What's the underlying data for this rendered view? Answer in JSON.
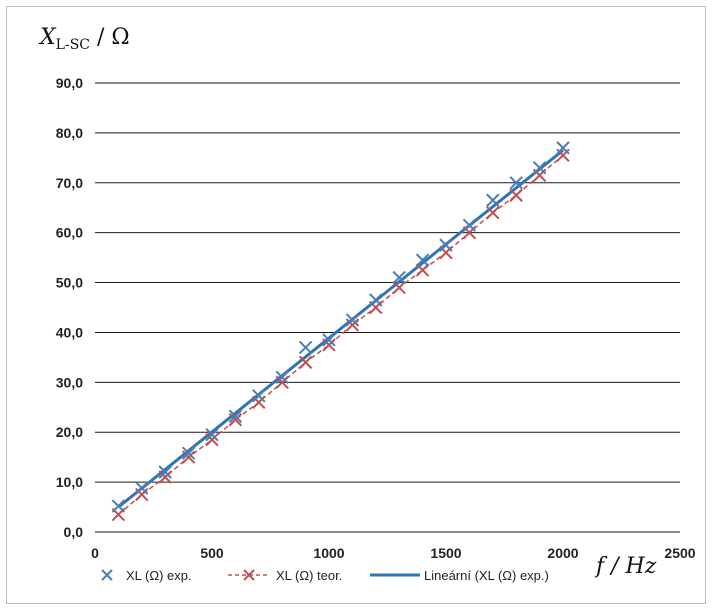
{
  "chart_data": {
    "type": "scatter",
    "ylabel": "Xₗ-SC / Ω",
    "ylabel_main": "X",
    "ylabel_sub": "L-SC",
    "ylabel_unit": " / Ω",
    "xlabel": "f / Hz",
    "xlim": [
      0,
      2500
    ],
    "ylim": [
      0,
      90
    ],
    "x_ticks": [
      "0",
      "500",
      "1000",
      "1500",
      "2000",
      "2500"
    ],
    "y_ticks": [
      "0,0",
      "10,0",
      "20,0",
      "30,0",
      "40,0",
      "50,0",
      "60,0",
      "70,0",
      "80,0",
      "90,0"
    ],
    "grid": "horizontal",
    "legend_position": "bottom",
    "x": [
      100,
      200,
      300,
      400,
      500,
      600,
      700,
      800,
      900,
      1000,
      1100,
      1200,
      1300,
      1400,
      1500,
      1600,
      1700,
      1800,
      1900,
      2000
    ],
    "series": [
      {
        "name": "XL (Ω) exp.",
        "style": "markers",
        "color": "#4a7fb5",
        "values": [
          5.2,
          8.8,
          12.0,
          15.8,
          19.5,
          23.2,
          27.3,
          31.0,
          37.0,
          38.5,
          42.5,
          46.5,
          51.0,
          54.5,
          57.5,
          61.5,
          66.5,
          70.0,
          73.0,
          77.0
        ]
      },
      {
        "name": "XL (Ω) teor.",
        "style": "dashed-markers",
        "color": "#c0504d",
        "values": [
          3.5,
          7.5,
          11.0,
          15.0,
          18.5,
          22.5,
          26.0,
          30.0,
          34.0,
          37.5,
          41.5,
          45.0,
          49.0,
          52.5,
          56.0,
          60.0,
          64.0,
          67.5,
          71.5,
          75.5
        ]
      },
      {
        "name": "Lineární (XL (Ω) exp.)",
        "style": "trendline",
        "color": "#2e75b6",
        "values": [
          5.0,
          76.5
        ]
      }
    ]
  }
}
